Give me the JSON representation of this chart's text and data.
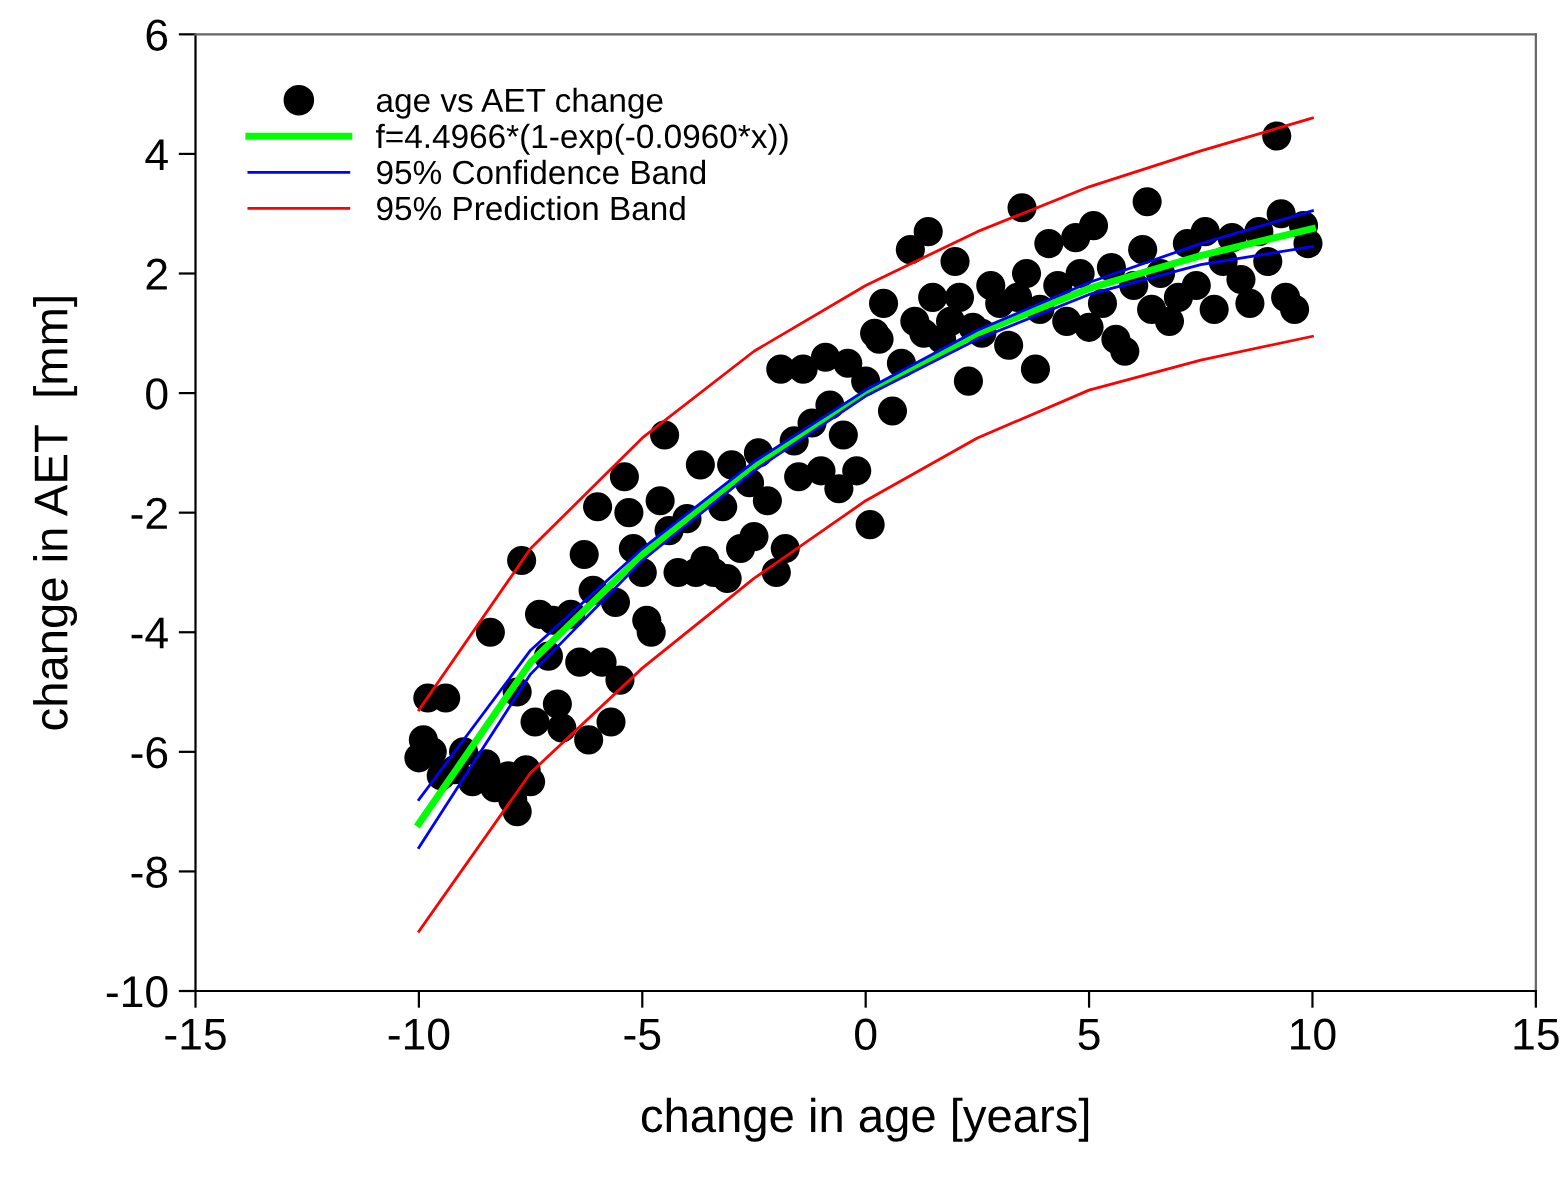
{
  "chart_data": {
    "type": "scatter",
    "xlabel": "change in age [years]",
    "ylabel": "change in AET  [mm]",
    "xlim": [
      -15,
      15
    ],
    "xticks": [
      -15,
      -10,
      -5,
      0,
      5,
      10,
      15
    ],
    "ylim": [
      -10,
      6
    ],
    "yticks": [
      -10,
      -8,
      -6,
      -4,
      -2,
      0,
      2,
      4,
      6
    ],
    "grid": false,
    "legend": "top left",
    "series": [
      {
        "name": "age vs AET change",
        "color": "#000000",
        "marker": "circle",
        "x": [
          -10,
          -9.9,
          -9.7,
          -9.8,
          -9.4,
          -9.5,
          -9.2,
          -9.0,
          -8.8,
          -8.5,
          -8.4,
          -8.3,
          -8.0,
          -7.9,
          -7.8,
          -7.6,
          -7.5,
          -7.4,
          -7.7,
          -7.8,
          -7.3,
          -7.0,
          -7.1,
          -6.9,
          -6.8,
          -6.6,
          -6.4,
          -6.3,
          -6.2,
          -6.0,
          -6.1,
          -5.9,
          -5.7,
          -5.5,
          -5.6,
          -5.4,
          -5.3,
          -5.2,
          -5.0,
          -4.9,
          -4.8,
          -4.6,
          -4.5,
          -4.4,
          -4.2,
          -4.0,
          -3.8,
          -3.7,
          -3.6,
          -3.4,
          -3.2,
          -3.1,
          -3.0,
          -2.8,
          -2.6,
          -2.4,
          -2.5,
          -2.2,
          -2.0,
          -1.9,
          -1.8,
          -1.6,
          -1.5,
          -1.4,
          -1.2,
          -1.0,
          -0.9,
          -0.8,
          -0.6,
          -0.5,
          -0.4,
          -0.2,
          0,
          0.1,
          0.2,
          0.3,
          0.4,
          0.6,
          0.8,
          1.0,
          1.1,
          1.3,
          1.4,
          1.5,
          1.7,
          1.9,
          2.0,
          2.1,
          2.3,
          2.4,
          2.6,
          2.8,
          3.0,
          3.2,
          3.4,
          3.5,
          3.6,
          3.8,
          3.9,
          4.1,
          4.3,
          4.5,
          4.7,
          4.8,
          5.0,
          5.1,
          5.3,
          5.5,
          5.6,
          5.8,
          6.0,
          6.2,
          6.3,
          6.4,
          6.6,
          6.8,
          7.0,
          7.2,
          7.4,
          7.6,
          7.8,
          8.0,
          8.2,
          8.4,
          8.6,
          8.8,
          9.0,
          9.2,
          9.3,
          9.4,
          9.6,
          9.8,
          9.9
        ],
        "values": [
          -6.1,
          -5.8,
          -6.0,
          -5.1,
          -5.1,
          -6.4,
          -6.3,
          -6.0,
          -6.5,
          -6.2,
          -4.0,
          -6.6,
          -6.4,
          -6.8,
          -7.0,
          -6.3,
          -6.5,
          -5.5,
          -2.8,
          -5.0,
          -3.7,
          -3.8,
          -4.4,
          -5.2,
          -5.6,
          -3.7,
          -4.5,
          -2.7,
          -5.8,
          -1.9,
          -3.3,
          -4.5,
          -5.5,
          -4.8,
          -3.5,
          -1.4,
          -2.0,
          -2.6,
          -3.0,
          -3.8,
          -4.0,
          -1.8,
          -0.7,
          -2.3,
          -3.0,
          -2.1,
          -3.0,
          -1.2,
          -2.8,
          -3.0,
          -1.9,
          -3.1,
          -1.2,
          -2.6,
          -1.5,
          -1.0,
          -2.4,
          -1.8,
          -3.0,
          0.4,
          -2.6,
          -0.8,
          -1.4,
          0.4,
          -0.5,
          -1.3,
          0.6,
          -0.2,
          -1.6,
          -0.7,
          0.5,
          -1.3,
          0.2,
          -2.2,
          1.0,
          0.9,
          1.5,
          -0.3,
          0.5,
          2.4,
          1.2,
          1.0,
          2.7,
          1.6,
          0.9,
          1.2,
          2.2,
          1.6,
          0.2,
          1.1,
          1.0,
          1.8,
          1.5,
          0.8,
          1.6,
          3.1,
          2.0,
          0.4,
          1.4,
          2.5,
          1.8,
          1.2,
          2.6,
          2.0,
          1.1,
          2.8,
          1.5,
          2.1,
          0.9,
          0.7,
          1.8,
          2.4,
          3.2,
          1.4,
          2.0,
          1.2,
          1.6,
          2.5,
          1.8,
          2.7,
          1.4,
          2.2,
          2.6,
          1.9,
          1.5,
          2.7,
          2.2,
          4.3,
          3.0,
          1.6,
          1.4,
          2.8,
          2.5
        ]
      },
      {
        "name": "f=4.4966*(1-exp(-0.0960*x))",
        "type": "line",
        "color": "#00ff00",
        "x": [
          -10,
          -7.5,
          -5,
          -2.5,
          0,
          2.5,
          5,
          7.5,
          10
        ],
        "values": [
          -7.2,
          -4.5,
          -2.7,
          -1.2,
          0,
          1.0,
          1.75,
          2.3,
          2.75
        ]
      },
      {
        "name": "95% Confidence Band",
        "type": "line",
        "color": "#0000ff",
        "x": [
          -10,
          -7.5,
          -5,
          -2.5,
          0,
          2.5,
          5,
          7.5,
          10
        ],
        "values": [
          -6.8,
          -4.3,
          -2.6,
          -1.15,
          0.05,
          1.05,
          1.85,
          2.5,
          3.05
        ]
      },
      {
        "type": "line",
        "color": "#0000ff",
        "x": [
          -10,
          -7.5,
          -5,
          -2.5,
          0,
          2.5,
          5,
          7.5,
          10
        ],
        "values": [
          -7.6,
          -4.7,
          -2.8,
          -1.3,
          -0.05,
          0.9,
          1.65,
          2.15,
          2.45
        ]
      },
      {
        "name": "95% Prediction Band",
        "type": "line",
        "color": "#ff0000",
        "x": [
          -10,
          -7.5,
          -5,
          -2.5,
          0,
          2.5,
          5,
          7.5,
          10
        ],
        "values": [
          -5.3,
          -2.6,
          -0.75,
          0.7,
          1.8,
          2.7,
          3.45,
          4.05,
          4.6
        ]
      },
      {
        "type": "line",
        "color": "#ff0000",
        "x": [
          -10,
          -7.5,
          -5,
          -2.5,
          0,
          2.5,
          5,
          7.5,
          10
        ],
        "values": [
          -9.0,
          -6.35,
          -4.6,
          -3.1,
          -1.8,
          -0.75,
          0.05,
          0.55,
          0.95
        ]
      }
    ]
  }
}
